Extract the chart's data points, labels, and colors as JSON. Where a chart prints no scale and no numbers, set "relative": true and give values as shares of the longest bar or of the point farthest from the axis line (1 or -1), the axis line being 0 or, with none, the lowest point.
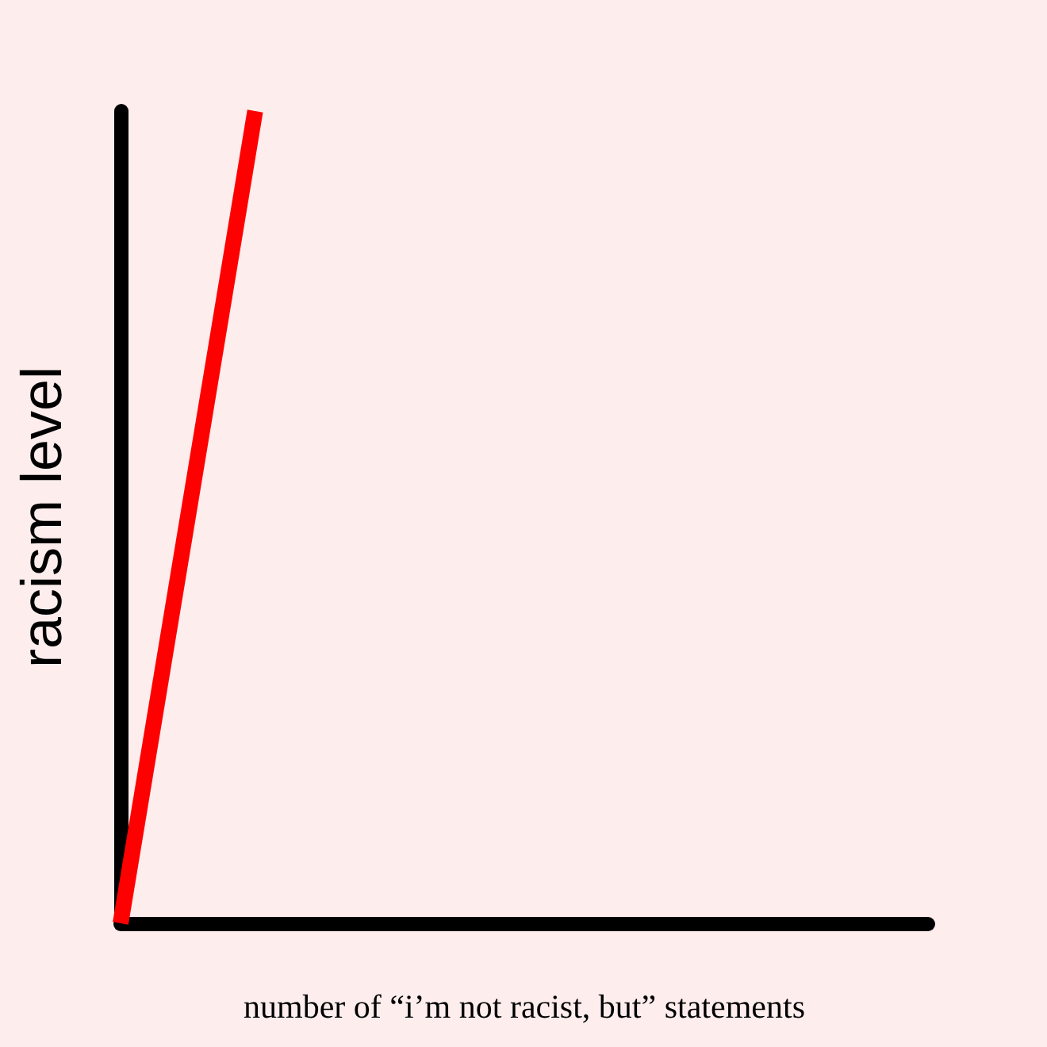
{
  "chart_data": {
    "type": "line",
    "relative": true,
    "xlabel": "number of “i’m not racist, but” statements",
    "ylabel": "racism level",
    "categories": [
      null,
      null,
      null,
      null,
      null,
      null,
      null
    ],
    "series": [
      {
        "color": "#ff0000",
        "values": [
          0,
          1,
          null,
          null,
          null,
          null,
          null
        ]
      }
    ],
    "grid": false,
    "marker": "none",
    "line_style": "solid"
  }
}
